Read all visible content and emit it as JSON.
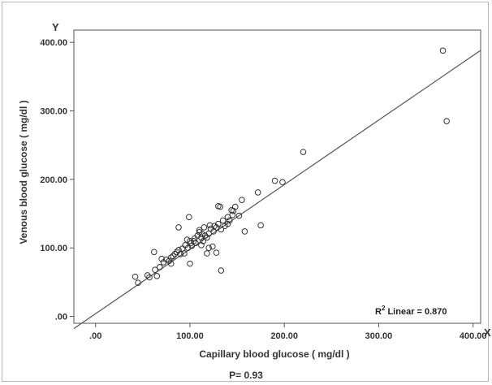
{
  "chart_data": {
    "type": "scatter",
    "xlabel": "Capillary blood glucose ( mg/dl )",
    "ylabel": "Venous blood glucose ( mg/dl )",
    "x_axis_letter": "X",
    "y_axis_letter": "Y",
    "xlim": [
      -23,
      408
    ],
    "ylim": [
      -10,
      418
    ],
    "x_ticks": [
      0,
      100,
      200,
      300,
      400
    ],
    "x_tick_labels": [
      ".00",
      "100.00",
      "200.00",
      "300.00",
      "400.00"
    ],
    "y_ticks": [
      0,
      100,
      200,
      300,
      400
    ],
    "y_tick_labels": [
      ".00",
      "100.00",
      "200.00",
      "300.00",
      "400.00"
    ],
    "fit_line": {
      "intercept": 4,
      "slope": 0.942
    },
    "annotation": {
      "prefix": "R",
      "superscript": "2",
      "text": " Linear = 0.870"
    },
    "footer": "P= 0.93",
    "grid": false,
    "marker": "open-circle",
    "points": [
      [
        42,
        58
      ],
      [
        45,
        49
      ],
      [
        55,
        60
      ],
      [
        57,
        57
      ],
      [
        62,
        94
      ],
      [
        63,
        68
      ],
      [
        65,
        59
      ],
      [
        68,
        72
      ],
      [
        70,
        84
      ],
      [
        72,
        79
      ],
      [
        75,
        83
      ],
      [
        78,
        81
      ],
      [
        80,
        77
      ],
      [
        80,
        86
      ],
      [
        82,
        88
      ],
      [
        84,
        91
      ],
      [
        86,
        94
      ],
      [
        88,
        97
      ],
      [
        88,
        130
      ],
      [
        90,
        91
      ],
      [
        92,
        99
      ],
      [
        94,
        92
      ],
      [
        95,
        104
      ],
      [
        97,
        112
      ],
      [
        98,
        100
      ],
      [
        99,
        145
      ],
      [
        100,
        77
      ],
      [
        100,
        110
      ],
      [
        101,
        107
      ],
      [
        102,
        103
      ],
      [
        104,
        110
      ],
      [
        105,
        114
      ],
      [
        106,
        107
      ],
      [
        108,
        118
      ],
      [
        110,
        126
      ],
      [
        110,
        123
      ],
      [
        112,
        104
      ],
      [
        112,
        115
      ],
      [
        113,
        120
      ],
      [
        114,
        110
      ],
      [
        115,
        130
      ],
      [
        116,
        118
      ],
      [
        118,
        92
      ],
      [
        118,
        115
      ],
      [
        120,
        100
      ],
      [
        120,
        121
      ],
      [
        121,
        133
      ],
      [
        122,
        128
      ],
      [
        124,
        102
      ],
      [
        125,
        124
      ],
      [
        126,
        132
      ],
      [
        128,
        93
      ],
      [
        128,
        130
      ],
      [
        130,
        135
      ],
      [
        130,
        161
      ],
      [
        132,
        160
      ],
      [
        133,
        67
      ],
      [
        133,
        127
      ],
      [
        135,
        140
      ],
      [
        137,
        132
      ],
      [
        140,
        135
      ],
      [
        140,
        145
      ],
      [
        142,
        140
      ],
      [
        144,
        155
      ],
      [
        145,
        148
      ],
      [
        146,
        154
      ],
      [
        148,
        160
      ],
      [
        152,
        147
      ],
      [
        155,
        170
      ],
      [
        158,
        124
      ],
      [
        172,
        181
      ],
      [
        175,
        133
      ],
      [
        190,
        198
      ],
      [
        198,
        196
      ],
      [
        220,
        240
      ],
      [
        368,
        388
      ],
      [
        372,
        285
      ]
    ]
  }
}
